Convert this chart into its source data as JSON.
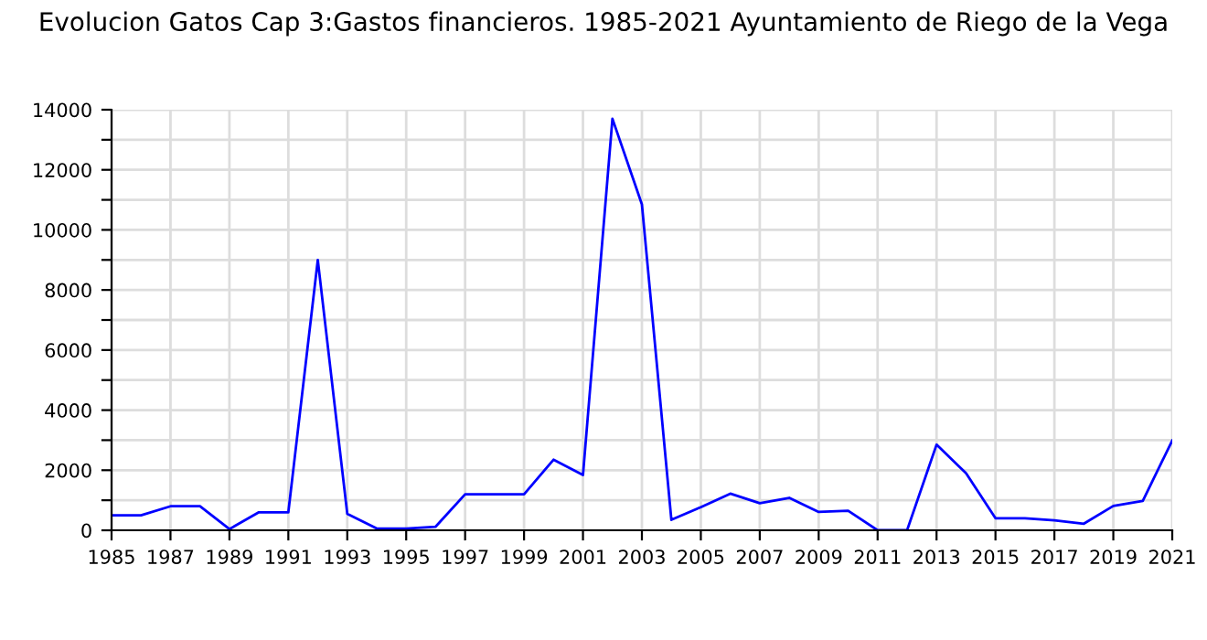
{
  "chart_data": {
    "type": "line",
    "title": "Evolucion Gatos Cap 3:Gastos financieros. 1985-2021 Ayuntamiento de Riego de la Vega",
    "x": [
      1985,
      1986,
      1987,
      1988,
      1989,
      1990,
      1991,
      1992,
      1993,
      1994,
      1995,
      1996,
      1997,
      1998,
      1999,
      2000,
      2001,
      2002,
      2003,
      2004,
      2005,
      2006,
      2007,
      2008,
      2009,
      2010,
      2011,
      2012,
      2013,
      2014,
      2015,
      2016,
      2017,
      2018,
      2019,
      2020,
      2021
    ],
    "series": [
      {
        "color": "#0000ff",
        "values": [
          500,
          500,
          800,
          800,
          40,
          600,
          600,
          9000,
          550,
          60,
          60,
          120,
          1200,
          1200,
          1200,
          2350,
          1840,
          13700,
          10850,
          350,
          770,
          1220,
          900,
          1080,
          610,
          650,
          0,
          0,
          2850,
          1900,
          400,
          400,
          330,
          220,
          810,
          980,
          2990
        ]
      }
    ],
    "xlim": [
      1985,
      2021
    ],
    "xticks": [
      1985,
      1987,
      1989,
      1991,
      1993,
      1995,
      1997,
      1999,
      2001,
      2003,
      2005,
      2007,
      2009,
      2011,
      2013,
      2015,
      2017,
      2019,
      2021
    ],
    "ylim": [
      0,
      14000
    ],
    "yticks": [
      0,
      {
        "value": 1000,
        "label": null
      },
      2000,
      {
        "value": 3000,
        "label": null
      },
      4000,
      {
        "value": 5000,
        "label": null
      },
      6000,
      {
        "value": 7000,
        "label": null
      },
      8000,
      {
        "value": 9000,
        "label": null
      },
      10000,
      {
        "value": 11000,
        "label": null
      },
      12000,
      {
        "value": 13000,
        "label": null
      },
      14000
    ],
    "grid": true,
    "marker": "none",
    "line_style": "solid"
  }
}
